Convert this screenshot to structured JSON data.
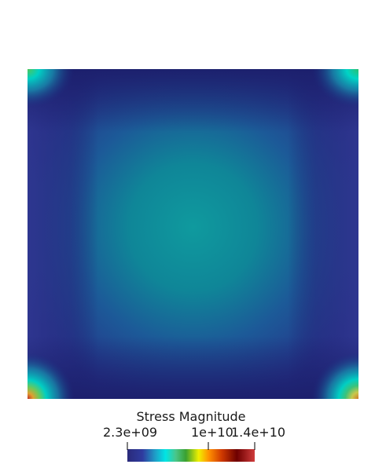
{
  "legend": {
    "title": "Stress Magnitude",
    "ticks": [
      {
        "label": "2.3e+09",
        "value": 2300000000
      },
      {
        "label": "1e+10",
        "value": 10000000000
      },
      {
        "label": "1.4e+10",
        "value": 14000000000
      }
    ],
    "range": [
      2300000000,
      14000000000
    ],
    "colormap": [
      "#2b2b7e",
      "#1e2a86",
      "#2a3fa0",
      "#1597b8",
      "#00e5e5",
      "#58cc72",
      "#e6e600",
      "#ff8c00",
      "#cc3300",
      "#7a0000",
      "#cc3333"
    ]
  },
  "field": {
    "background_color": "#ffffff",
    "base_color": "#2b2f86",
    "edge_color": "#1a1f6e",
    "center_color": "#0f9098",
    "mid_color": "#1f6aa0",
    "corner_hot_color": "#00d6c8",
    "corner_peak_color": "#c0392b",
    "corner_warm_color": "#e0c24a"
  }
}
